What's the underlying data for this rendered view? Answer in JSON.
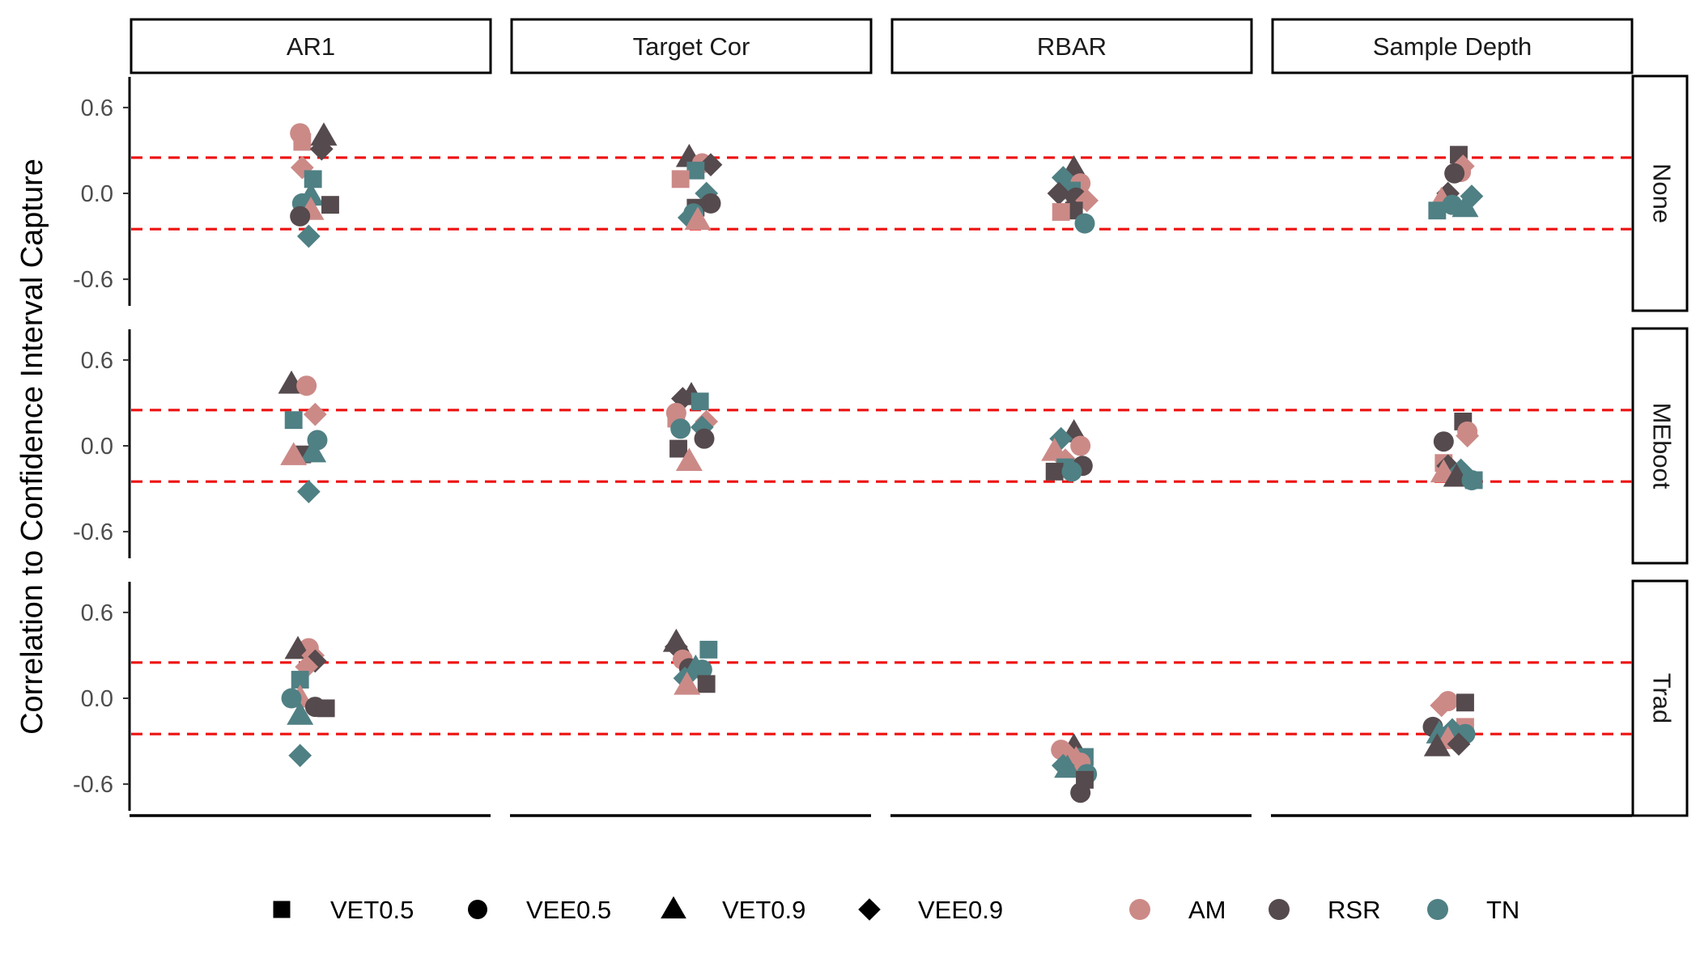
{
  "chart_data": {
    "type": "scatter",
    "y_axis_label": "Correlation to Confidence Interval Capture",
    "y_ticks": [
      0.6,
      0.0,
      -0.6
    ],
    "y_tick_labels": [
      "0.6",
      "0.0",
      "-0.6"
    ],
    "ylim": [
      -0.82,
      0.82
    ],
    "reference_lines": {
      "values": [
        0.25,
        -0.25
      ],
      "color": "#ee1111",
      "style": "dashed"
    },
    "columns": [
      "AR1",
      "Target Cor",
      "RBAR",
      "Sample Depth"
    ],
    "rows": [
      "None",
      "MEboot",
      "Trad"
    ],
    "shape_legend": [
      {
        "key": "VET0.5",
        "label": "VET0.5",
        "shape": "square"
      },
      {
        "key": "VEE0.5",
        "label": "VEE0.5",
        "shape": "circle"
      },
      {
        "key": "VET0.9",
        "label": "VET0.9",
        "shape": "triangle"
      },
      {
        "key": "VEE0.9",
        "label": "VEE0.9",
        "shape": "diamond"
      }
    ],
    "color_legend": [
      {
        "key": "AM",
        "label": "AM",
        "color": "#cc8a87"
      },
      {
        "key": "RSR",
        "label": "RSR",
        "color": "#554a4d"
      },
      {
        "key": "TN",
        "label": "TN",
        "color": "#4f8084"
      }
    ],
    "panels": [
      {
        "row": "None",
        "col": "AR1",
        "points": [
          {
            "s": "VEE0.5",
            "c": "AM",
            "jx": -0.05,
            "y": 0.42
          },
          {
            "s": "VET0.5",
            "c": "AM",
            "jx": -0.04,
            "y": 0.36
          },
          {
            "s": "VET0.9",
            "c": "RSR",
            "jx": 0.06,
            "y": 0.4
          },
          {
            "s": "VEE0.9",
            "c": "RSR",
            "jx": 0.05,
            "y": 0.31
          },
          {
            "s": "VEE0.9",
            "c": "AM",
            "jx": -0.04,
            "y": 0.18
          },
          {
            "s": "VET0.5",
            "c": "TN",
            "jx": 0.01,
            "y": 0.1
          },
          {
            "s": "VET0.9",
            "c": "TN",
            "jx": 0.0,
            "y": -0.02
          },
          {
            "s": "VEE0.5",
            "c": "TN",
            "jx": -0.04,
            "y": -0.07
          },
          {
            "s": "VET0.5",
            "c": "RSR",
            "jx": 0.09,
            "y": -0.08
          },
          {
            "s": "VET0.9",
            "c": "AM",
            "jx": 0.0,
            "y": -0.12
          },
          {
            "s": "VEE0.5",
            "c": "RSR",
            "jx": -0.05,
            "y": -0.16
          },
          {
            "s": "VEE0.9",
            "c": "TN",
            "jx": -0.01,
            "y": -0.3
          }
        ]
      },
      {
        "row": "None",
        "col": "Target Cor",
        "points": [
          {
            "s": "VET0.9",
            "c": "RSR",
            "jx": -0.01,
            "y": 0.25
          },
          {
            "s": "VEE0.5",
            "c": "AM",
            "jx": 0.05,
            "y": 0.21
          },
          {
            "s": "VEE0.9",
            "c": "RSR",
            "jx": 0.09,
            "y": 0.2
          },
          {
            "s": "VET0.5",
            "c": "TN",
            "jx": 0.02,
            "y": 0.16
          },
          {
            "s": "VET0.5",
            "c": "AM",
            "jx": -0.05,
            "y": 0.1
          },
          {
            "s": "VEE0.9",
            "c": "TN",
            "jx": 0.07,
            "y": 0.0
          },
          {
            "s": "VEE0.5",
            "c": "RSR",
            "jx": 0.09,
            "y": -0.07
          },
          {
            "s": "VET0.5",
            "c": "RSR",
            "jx": 0.02,
            "y": -0.1
          },
          {
            "s": "VEE0.5",
            "c": "TN",
            "jx": 0.01,
            "y": -0.14
          },
          {
            "s": "VEE0.9",
            "c": "TN",
            "jx": -0.01,
            "y": -0.17
          },
          {
            "s": "VET0.9",
            "c": "AM",
            "jx": 0.03,
            "y": -0.19
          }
        ]
      },
      {
        "row": "None",
        "col": "RBAR",
        "points": [
          {
            "s": "VET0.9",
            "c": "RSR",
            "jx": 0.01,
            "y": 0.17
          },
          {
            "s": "VEE0.9",
            "c": "TN",
            "jx": -0.04,
            "y": 0.11
          },
          {
            "s": "VEE0.5",
            "c": "AM",
            "jx": 0.04,
            "y": 0.07
          },
          {
            "s": "VET0.5",
            "c": "TN",
            "jx": 0.0,
            "y": 0.02
          },
          {
            "s": "VEE0.9",
            "c": "RSR",
            "jx": -0.06,
            "y": 0.0
          },
          {
            "s": "VEE0.5",
            "c": "RSR",
            "jx": 0.02,
            "y": -0.03
          },
          {
            "s": "VEE0.9",
            "c": "AM",
            "jx": 0.07,
            "y": -0.05
          },
          {
            "s": "VET0.5",
            "c": "RSR",
            "jx": 0.01,
            "y": -0.12
          },
          {
            "s": "VET0.5",
            "c": "AM",
            "jx": -0.05,
            "y": -0.13
          },
          {
            "s": "VEE0.5",
            "c": "TN",
            "jx": 0.06,
            "y": -0.21
          }
        ]
      },
      {
        "row": "None",
        "col": "Sample Depth",
        "points": [
          {
            "s": "VET0.5",
            "c": "RSR",
            "jx": 0.03,
            "y": 0.27
          },
          {
            "s": "VEE0.9",
            "c": "AM",
            "jx": 0.05,
            "y": 0.19
          },
          {
            "s": "VEE0.5",
            "c": "AM",
            "jx": 0.04,
            "y": 0.15
          },
          {
            "s": "VEE0.5",
            "c": "RSR",
            "jx": 0.01,
            "y": 0.14
          },
          {
            "s": "VEE0.9",
            "c": "RSR",
            "jx": -0.02,
            "y": 0.0
          },
          {
            "s": "VEE0.9",
            "c": "TN",
            "jx": 0.09,
            "y": -0.02
          },
          {
            "s": "VET0.9",
            "c": "AM",
            "jx": -0.05,
            "y": -0.05
          },
          {
            "s": "VEE0.5",
            "c": "TN",
            "jx": 0.0,
            "y": -0.08
          },
          {
            "s": "VET0.9",
            "c": "TN",
            "jx": 0.06,
            "y": -0.1
          },
          {
            "s": "VET0.5",
            "c": "TN",
            "jx": -0.07,
            "y": -0.12
          }
        ]
      },
      {
        "row": "MEboot",
        "col": "AR1",
        "points": [
          {
            "s": "VET0.9",
            "c": "RSR",
            "jx": -0.09,
            "y": 0.43
          },
          {
            "s": "VEE0.5",
            "c": "AM",
            "jx": -0.02,
            "y": 0.42
          },
          {
            "s": "VEE0.9",
            "c": "AM",
            "jx": 0.02,
            "y": 0.22
          },
          {
            "s": "VET0.5",
            "c": "TN",
            "jx": -0.08,
            "y": 0.18
          },
          {
            "s": "VEE0.5",
            "c": "TN",
            "jx": 0.03,
            "y": 0.04
          },
          {
            "s": "VET0.5",
            "c": "RSR",
            "jx": -0.04,
            "y": -0.06
          },
          {
            "s": "VET0.9",
            "c": "TN",
            "jx": 0.01,
            "y": -0.05
          },
          {
            "s": "VET0.9",
            "c": "AM",
            "jx": -0.08,
            "y": -0.07
          },
          {
            "s": "VEE0.9",
            "c": "TN",
            "jx": -0.01,
            "y": -0.32
          }
        ]
      },
      {
        "row": "MEboot",
        "col": "Target Cor",
        "points": [
          {
            "s": "VEE0.9",
            "c": "RSR",
            "jx": -0.04,
            "y": 0.33
          },
          {
            "s": "VET0.9",
            "c": "RSR",
            "jx": 0.0,
            "y": 0.35
          },
          {
            "s": "VET0.5",
            "c": "TN",
            "jx": 0.04,
            "y": 0.31
          },
          {
            "s": "VEE0.5",
            "c": "AM",
            "jx": -0.07,
            "y": 0.23
          },
          {
            "s": "VET0.5",
            "c": "AM",
            "jx": -0.07,
            "y": 0.19
          },
          {
            "s": "VEE0.9",
            "c": "AM",
            "jx": 0.07,
            "y": 0.17
          },
          {
            "s": "VEE0.9",
            "c": "TN",
            "jx": 0.05,
            "y": 0.13
          },
          {
            "s": "VEE0.5",
            "c": "TN",
            "jx": -0.05,
            "y": 0.12
          },
          {
            "s": "VEE0.5",
            "c": "RSR",
            "jx": 0.06,
            "y": 0.05
          },
          {
            "s": "VET0.5",
            "c": "RSR",
            "jx": -0.06,
            "y": -0.02
          },
          {
            "s": "VET0.9",
            "c": "AM",
            "jx": -0.01,
            "y": -0.11
          }
        ]
      },
      {
        "row": "MEboot",
        "col": "RBAR",
        "points": [
          {
            "s": "VET0.9",
            "c": "RSR",
            "jx": 0.01,
            "y": 0.09
          },
          {
            "s": "VEE0.9",
            "c": "TN",
            "jx": -0.05,
            "y": 0.05
          },
          {
            "s": "VEE0.5",
            "c": "AM",
            "jx": 0.04,
            "y": 0.0
          },
          {
            "s": "VET0.9",
            "c": "AM",
            "jx": -0.08,
            "y": -0.04
          },
          {
            "s": "VEE0.9",
            "c": "AM",
            "jx": -0.03,
            "y": -0.1
          },
          {
            "s": "VEE0.5",
            "c": "RSR",
            "jx": 0.05,
            "y": -0.14
          },
          {
            "s": "VET0.5",
            "c": "TN",
            "jx": -0.03,
            "y": -0.15
          },
          {
            "s": "VET0.5",
            "c": "RSR",
            "jx": -0.08,
            "y": -0.18
          },
          {
            "s": "VEE0.5",
            "c": "TN",
            "jx": 0.0,
            "y": -0.18
          }
        ]
      },
      {
        "row": "MEboot",
        "col": "Sample Depth",
        "points": [
          {
            "s": "VET0.5",
            "c": "RSR",
            "jx": 0.05,
            "y": 0.17
          },
          {
            "s": "VEE0.5",
            "c": "AM",
            "jx": 0.07,
            "y": 0.1
          },
          {
            "s": "VEE0.9",
            "c": "AM",
            "jx": 0.07,
            "y": 0.07
          },
          {
            "s": "VEE0.5",
            "c": "RSR",
            "jx": -0.04,
            "y": 0.03
          },
          {
            "s": "VET0.5",
            "c": "AM",
            "jx": -0.04,
            "y": -0.12
          },
          {
            "s": "VEE0.9",
            "c": "RSR",
            "jx": -0.02,
            "y": -0.14
          },
          {
            "s": "VEE0.9",
            "c": "TN",
            "jx": 0.04,
            "y": -0.17
          },
          {
            "s": "VET0.9",
            "c": "AM",
            "jx": -0.04,
            "y": -0.19
          },
          {
            "s": "VET0.9",
            "c": "RSR",
            "jx": 0.02,
            "y": -0.22
          },
          {
            "s": "VEE0.5",
            "c": "TN",
            "jx": 0.09,
            "y": -0.24
          },
          {
            "s": "VET0.5",
            "c": "TN",
            "jx": 0.1,
            "y": -0.24
          }
        ]
      },
      {
        "row": "Trad",
        "col": "AR1",
        "points": [
          {
            "s": "VEE0.5",
            "c": "AM",
            "jx": -0.01,
            "y": 0.35
          },
          {
            "s": "VET0.9",
            "c": "RSR",
            "jx": -0.06,
            "y": 0.34
          },
          {
            "s": "VEE0.9",
            "c": "AM",
            "jx": 0.01,
            "y": 0.3
          },
          {
            "s": "VEE0.9",
            "c": "RSR",
            "jx": 0.02,
            "y": 0.26
          },
          {
            "s": "VEE0.9",
            "c": "AM",
            "jx": -0.02,
            "y": 0.22
          },
          {
            "s": "VET0.5",
            "c": "TN",
            "jx": -0.05,
            "y": 0.13
          },
          {
            "s": "VET0.9",
            "c": "AM",
            "jx": -0.05,
            "y": 0.0
          },
          {
            "s": "VEE0.5",
            "c": "TN",
            "jx": -0.09,
            "y": 0.0
          },
          {
            "s": "VEE0.5",
            "c": "RSR",
            "jx": 0.02,
            "y": -0.06
          },
          {
            "s": "VET0.5",
            "c": "RSR",
            "jx": 0.07,
            "y": -0.07
          },
          {
            "s": "VET0.9",
            "c": "TN",
            "jx": -0.05,
            "y": -0.12
          },
          {
            "s": "VEE0.9",
            "c": "TN",
            "jx": -0.05,
            "y": -0.4
          }
        ]
      },
      {
        "row": "Trad",
        "col": "Target Cor",
        "points": [
          {
            "s": "VET0.9",
            "c": "RSR",
            "jx": -0.07,
            "y": 0.39
          },
          {
            "s": "VEE0.9",
            "c": "RSR",
            "jx": -0.07,
            "y": 0.36
          },
          {
            "s": "VET0.5",
            "c": "TN",
            "jx": 0.08,
            "y": 0.34
          },
          {
            "s": "VEE0.5",
            "c": "AM",
            "jx": -0.04,
            "y": 0.27
          },
          {
            "s": "VEE0.5",
            "c": "RSR",
            "jx": -0.01,
            "y": 0.21
          },
          {
            "s": "VET0.9",
            "c": "TN",
            "jx": 0.02,
            "y": 0.21
          },
          {
            "s": "VEE0.5",
            "c": "TN",
            "jx": 0.05,
            "y": 0.2
          },
          {
            "s": "VEE0.9",
            "c": "TN",
            "jx": -0.03,
            "y": 0.14
          },
          {
            "s": "VET0.5",
            "c": "RSR",
            "jx": 0.07,
            "y": 0.1
          },
          {
            "s": "VET0.9",
            "c": "AM",
            "jx": -0.02,
            "y": 0.09
          }
        ]
      },
      {
        "row": "Trad",
        "col": "RBAR",
        "points": [
          {
            "s": "VET0.9",
            "c": "RSR",
            "jx": 0.01,
            "y": -0.34
          },
          {
            "s": "VEE0.5",
            "c": "AM",
            "jx": -0.05,
            "y": -0.36
          },
          {
            "s": "VEE0.9",
            "c": "AM",
            "jx": -0.02,
            "y": -0.39
          },
          {
            "s": "VET0.5",
            "c": "TN",
            "jx": 0.06,
            "y": -0.41
          },
          {
            "s": "VET0.9",
            "c": "AM",
            "jx": 0.02,
            "y": -0.43
          },
          {
            "s": "VEE0.5",
            "c": "AM",
            "jx": 0.04,
            "y": -0.45
          },
          {
            "s": "VEE0.9",
            "c": "TN",
            "jx": -0.04,
            "y": -0.47
          },
          {
            "s": "VET0.9",
            "c": "TN",
            "jx": -0.02,
            "y": -0.49
          },
          {
            "s": "VEE0.5",
            "c": "TN",
            "jx": 0.07,
            "y": -0.53
          },
          {
            "s": "VET0.5",
            "c": "RSR",
            "jx": 0.06,
            "y": -0.57
          },
          {
            "s": "VEE0.5",
            "c": "RSR",
            "jx": 0.04,
            "y": -0.66
          }
        ]
      },
      {
        "row": "Trad",
        "col": "Sample Depth",
        "points": [
          {
            "s": "VEE0.5",
            "c": "AM",
            "jx": -0.02,
            "y": -0.02
          },
          {
            "s": "VET0.5",
            "c": "RSR",
            "jx": 0.06,
            "y": -0.03
          },
          {
            "s": "VEE0.9",
            "c": "AM",
            "jx": -0.05,
            "y": -0.05
          },
          {
            "s": "VEE0.5",
            "c": "RSR",
            "jx": -0.09,
            "y": -0.2
          },
          {
            "s": "VET0.5",
            "c": "AM",
            "jx": 0.06,
            "y": -0.2
          },
          {
            "s": "VEE0.9",
            "c": "TN",
            "jx": 0.0,
            "y": -0.22
          },
          {
            "s": "VET0.9",
            "c": "TN",
            "jx": -0.06,
            "y": -0.25
          },
          {
            "s": "VEE0.5",
            "c": "TN",
            "jx": 0.06,
            "y": -0.25
          },
          {
            "s": "VET0.9",
            "c": "AM",
            "jx": -0.02,
            "y": -0.29
          },
          {
            "s": "VEE0.9",
            "c": "RSR",
            "jx": 0.03,
            "y": -0.32
          },
          {
            "s": "VET0.9",
            "c": "RSR",
            "jx": -0.07,
            "y": -0.34
          }
        ]
      }
    ]
  }
}
